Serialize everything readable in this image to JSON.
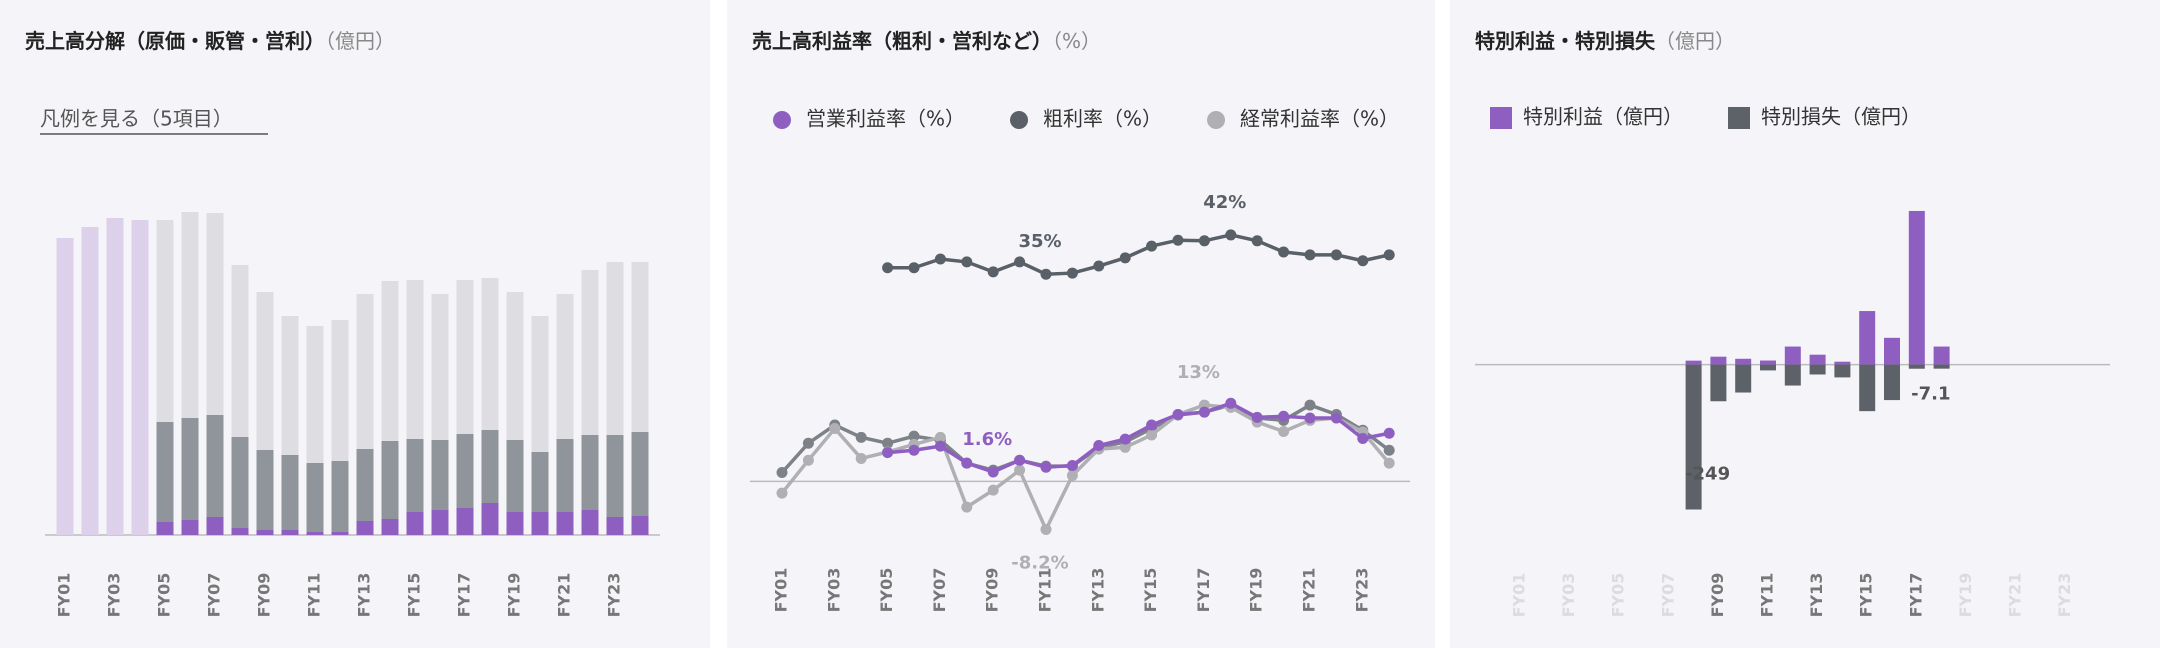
{
  "chart_data": [
    {
      "type": "bar",
      "stacked": true,
      "title": "売上高分解（原価・販管・営利）",
      "unit": "（億円）",
      "legend_toggle": "凡例を見る（5項目）",
      "categories": [
        "FY01",
        null,
        "FY03",
        null,
        "FY05",
        null,
        "FY07",
        null,
        "FY09",
        null,
        "FY11",
        null,
        "FY13",
        null,
        "FY15",
        null,
        "FY17",
        null,
        "FY19",
        null,
        "FY21",
        null,
        "FY23",
        null
      ],
      "ylim": [
        0,
        3500
      ],
      "series": [
        {
          "color": "#dcd0ea",
          "values": [
            2970,
            3080,
            3170,
            3150,
            null,
            null,
            null,
            null,
            null,
            null,
            null,
            null,
            null,
            null,
            null,
            null,
            null,
            null,
            null,
            null,
            null,
            null,
            null,
            null
          ]
        },
        {
          "color": "#8e5fc0",
          "values": [
            null,
            null,
            null,
            null,
            130,
            150,
            180,
            70,
            50,
            50,
            30,
            30,
            140,
            160,
            230,
            250,
            270,
            320,
            230,
            230,
            230,
            250,
            180,
            190
          ]
        },
        {
          "color": "#8f959b",
          "values": [
            null,
            null,
            null,
            null,
            1000,
            1020,
            1020,
            910,
            800,
            750,
            690,
            710,
            720,
            780,
            730,
            700,
            740,
            730,
            720,
            600,
            730,
            750,
            820,
            840
          ]
        },
        {
          "color": "#dedee2",
          "values": [
            null,
            null,
            null,
            null,
            2020,
            2060,
            2020,
            1720,
            1580,
            1390,
            1370,
            1410,
            1550,
            1600,
            1590,
            1460,
            1540,
            1520,
            1480,
            1360,
            1450,
            1650,
            1730,
            1700
          ]
        }
      ]
    },
    {
      "type": "line",
      "title": "売上高利益率（粗利・営利など）",
      "unit": "（%）",
      "legend": "top-left",
      "categories": [
        "FY01",
        null,
        "FY03",
        null,
        "FY05",
        null,
        "FY07",
        null,
        "FY09",
        null,
        "FY11",
        null,
        "FY13",
        null,
        "FY15",
        null,
        "FY17",
        null,
        "FY19",
        null,
        "FY21",
        null,
        "FY23",
        null
      ],
      "ylim": [
        -10,
        50
      ],
      "series": [
        {
          "name": "営業利益率（%）",
          "color": "#8e5fc0",
          "values": [
            null,
            null,
            null,
            null,
            4.9,
            5.3,
            6.0,
            3.1,
            1.6,
            3.6,
            2.4,
            2.7,
            6.1,
            7.2,
            9.6,
            11.4,
            11.8,
            13.3,
            10.9,
            11.1,
            10.8,
            10.8,
            7.3,
            8.2
          ],
          "value_labels": [
            null,
            null,
            null,
            null,
            null,
            null,
            null,
            null,
            "1.6%",
            null,
            null,
            null,
            null,
            null,
            null,
            null,
            null,
            null,
            null,
            null,
            null,
            null,
            null,
            null
          ]
        },
        {
          "name": "粗利率（%）",
          "color": "#5a6068",
          "values": [
            null,
            null,
            null,
            null,
            36.4,
            36.4,
            37.9,
            37.4,
            35.7,
            37.4,
            35.3,
            35.5,
            36.7,
            38.1,
            40.1,
            41.1,
            41.0,
            42.0,
            41.0,
            39.1,
            38.6,
            38.6,
            37.6,
            38.6
          ],
          "value_labels": [
            null,
            null,
            null,
            null,
            null,
            null,
            null,
            null,
            null,
            null,
            "35%",
            null,
            null,
            null,
            null,
            null,
            null,
            "42%",
            null,
            null,
            null,
            null,
            null,
            null
          ]
        },
        {
          "name": "経常利益率（%）",
          "color": "#b0b0b4",
          "values": [
            -2.0,
            3.6,
            9.0,
            3.9,
            5.0,
            6.3,
            7.5,
            -4.4,
            -1.5,
            1.9,
            -8.2,
            1.0,
            5.5,
            5.8,
            7.9,
            11.4,
            13.0,
            12.6,
            10.1,
            8.5,
            10.4,
            10.8,
            8.4,
            3.1
          ],
          "value_labels": [
            null,
            null,
            null,
            null,
            null,
            null,
            null,
            null,
            null,
            null,
            "-8.2%",
            null,
            null,
            null,
            null,
            null,
            "13%",
            null,
            null,
            null,
            null,
            null,
            null,
            null
          ]
        },
        {
          "color": "#7d8288",
          "values": [
            1.5,
            6.5,
            9.6,
            7.5,
            6.5,
            7.7,
            7.0,
            3.1,
            1.9,
            3.6,
            2.6,
            2.6,
            5.8,
            6.7,
            9.0,
            11.3,
            11.8,
            13.0,
            10.8,
            10.4,
            13.0,
            11.4,
            8.7,
            5.3
          ]
        }
      ]
    },
    {
      "type": "bar",
      "stacked": true,
      "title": "特別利益・特別損失",
      "unit": "（億円）",
      "legend": "top-left",
      "categories": [
        "FY01",
        null,
        "FY03",
        null,
        "FY05",
        null,
        "FY07",
        null,
        "FY09",
        null,
        "FY11",
        null,
        "FY13",
        null,
        "FY15",
        null,
        "FY17",
        null,
        "FY19",
        null,
        "FY21",
        null,
        "FY23",
        null
      ],
      "ylim": [
        -310,
        300
      ],
      "series": [
        {
          "name": "特別利益（億円）",
          "color": "#8e5fc0",
          "values": [
            null,
            null,
            null,
            null,
            null,
            null,
            null,
            6.8,
            13.6,
            10,
            7,
            31,
            17,
            5,
            92,
            46,
            264,
            31,
            null,
            null,
            null,
            null,
            null,
            null
          ]
        },
        {
          "name": "特別損失（億円）",
          "color": "#5d6168",
          "values": [
            null,
            null,
            null,
            null,
            null,
            null,
            null,
            -249,
            -63,
            -48,
            -10,
            -36,
            -17,
            -22,
            -80,
            -61,
            -7.1,
            -7,
            null,
            null,
            null,
            null,
            null,
            null
          ],
          "value_labels": [
            null,
            null,
            null,
            null,
            null,
            null,
            null,
            "-249",
            null,
            null,
            null,
            null,
            null,
            null,
            null,
            null,
            "-7.1",
            null,
            null,
            null,
            null,
            null,
            null,
            null
          ]
        }
      ]
    }
  ]
}
